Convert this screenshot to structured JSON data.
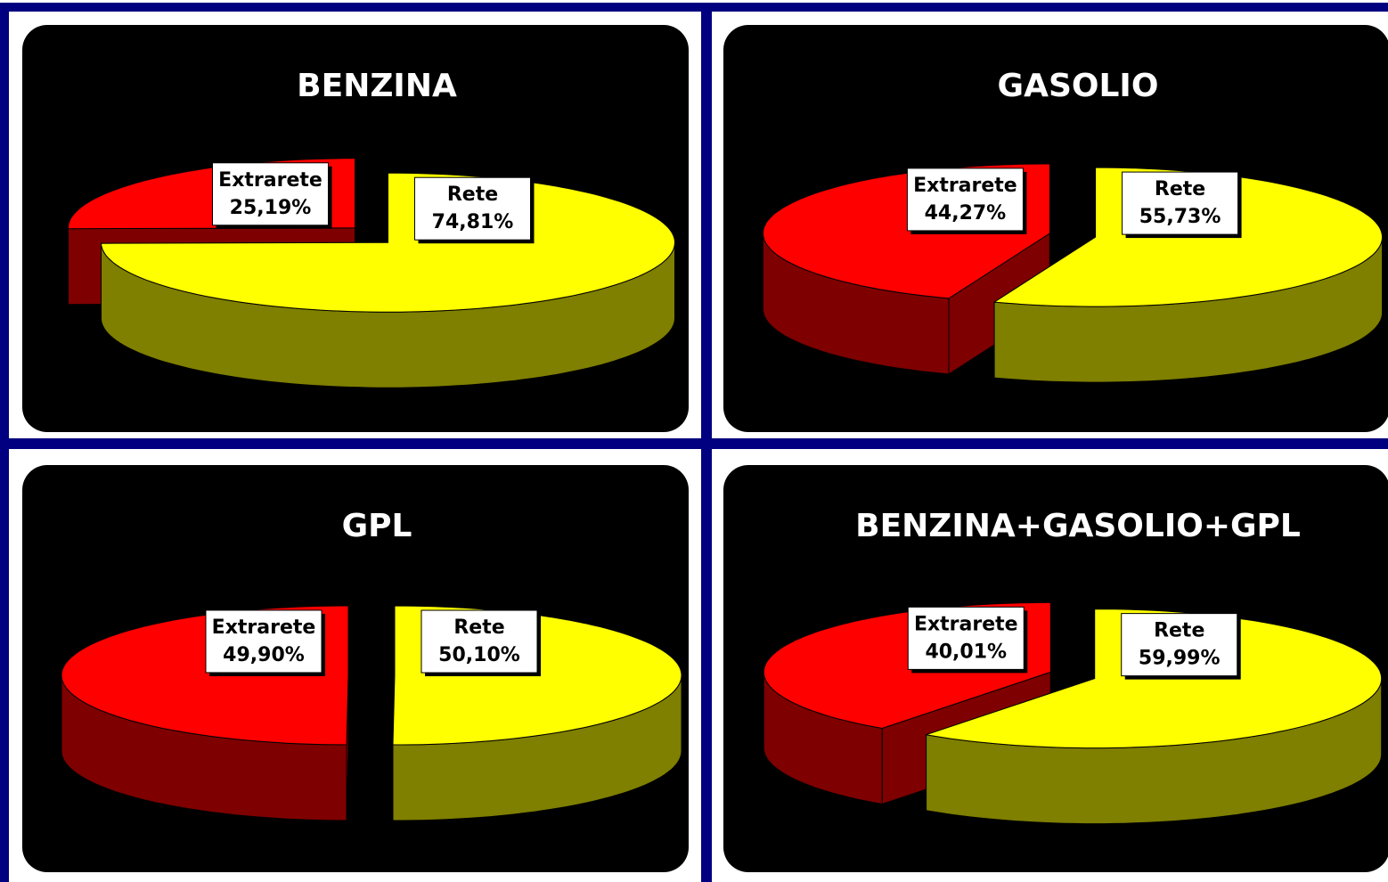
{
  "chart_data": [
    {
      "type": "pie",
      "title": "BENZINA",
      "categories": [
        "Extrarete",
        "Rete"
      ],
      "values": [
        25.19,
        74.81
      ],
      "value_labels": [
        "25,19%",
        "74,81%"
      ],
      "colors": [
        "#ff0000",
        "#ffff00"
      ]
    },
    {
      "type": "pie",
      "title": "GASOLIO",
      "categories": [
        "Extrarete",
        "Rete"
      ],
      "values": [
        44.27,
        55.73
      ],
      "value_labels": [
        "44,27%",
        "55,73%"
      ],
      "colors": [
        "#ff0000",
        "#ffff00"
      ]
    },
    {
      "type": "pie",
      "title": "GPL",
      "categories": [
        "Extrarete",
        "Rete"
      ],
      "values": [
        49.9,
        50.1
      ],
      "value_labels": [
        "49,90%",
        "50,10%"
      ],
      "colors": [
        "#ff0000",
        "#ffff00"
      ]
    },
    {
      "type": "pie",
      "title": "BENZINA+GASOLIO+GPL",
      "categories": [
        "Extrarete",
        "Rete"
      ],
      "values": [
        40.01,
        59.99
      ],
      "value_labels": [
        "40,01%",
        "59,99%"
      ],
      "colors": [
        "#ff0000",
        "#ffff00"
      ]
    }
  ]
}
